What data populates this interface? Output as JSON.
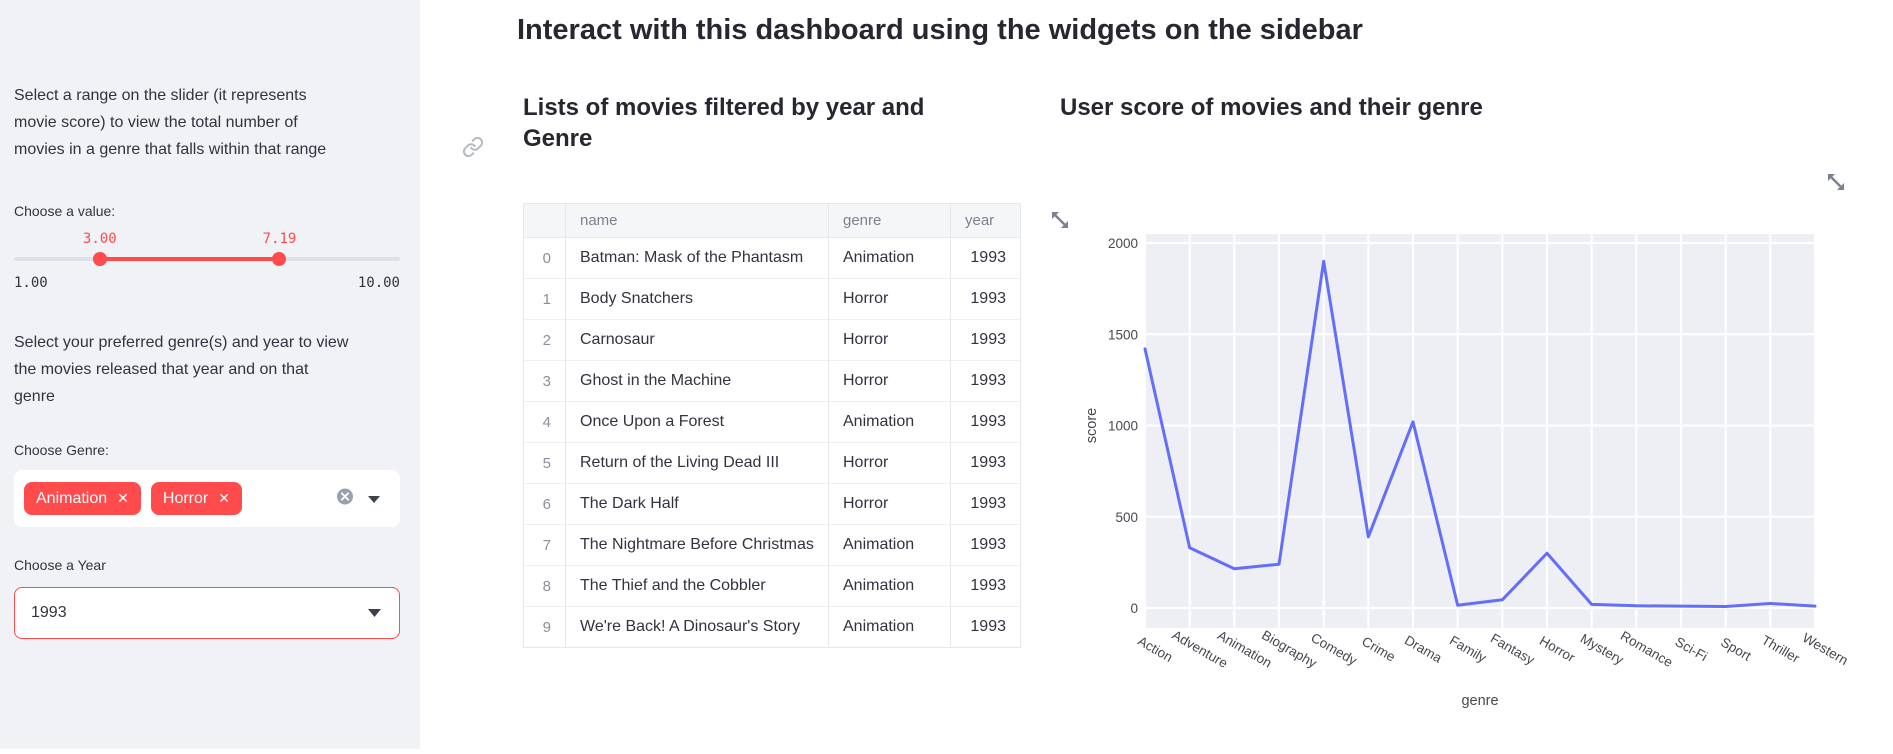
{
  "sidebar": {
    "instruction1": "Select a range on the slider (it represents movie score) to view the total number of movies in a genre that falls within that range",
    "slider": {
      "label": "Choose a value:",
      "min": 1.0,
      "max": 10.0,
      "low": 3.0,
      "high": 7.19,
      "low_label": "3.00",
      "high_label": "7.19",
      "min_label": "1.00",
      "max_label": "10.00"
    },
    "instruction2": "Select your preferred genre(s) and year to view the movies released that year and on that genre",
    "genre_select": {
      "label": "Choose Genre:",
      "selected": [
        "Animation",
        "Horror"
      ],
      "remove_glyph": "✕"
    },
    "year_select": {
      "label": "Choose a Year",
      "value": "1993"
    }
  },
  "main": {
    "title": "Interact with this dashboard using the widgets on the sidebar",
    "table_section": {
      "heading": "Lists of movies filtered by year and Genre",
      "columns": [
        "",
        "name",
        "genre",
        "year"
      ],
      "rows": [
        [
          0,
          "Batman: Mask of the Phantasm",
          "Animation",
          1993
        ],
        [
          1,
          "Body Snatchers",
          "Horror",
          1993
        ],
        [
          2,
          "Carnosaur",
          "Horror",
          1993
        ],
        [
          3,
          "Ghost in the Machine",
          "Horror",
          1993
        ],
        [
          4,
          "Once Upon a Forest",
          "Animation",
          1993
        ],
        [
          5,
          "Return of the Living Dead III",
          "Horror",
          1993
        ],
        [
          6,
          "The Dark Half",
          "Horror",
          1993
        ],
        [
          7,
          "The Nightmare Before Christmas",
          "Animation",
          1993
        ],
        [
          8,
          "The Thief and the Cobbler",
          "Animation",
          1993
        ],
        [
          9,
          "We're Back! A Dinosaur's Story",
          "Animation",
          1993
        ]
      ]
    },
    "chart_section": {
      "heading": "User score of movies and their genre"
    }
  },
  "chart_data": {
    "type": "line",
    "title": "User score of movies and their genre",
    "categories": [
      "Action",
      "Adventure",
      "Animation",
      "Biography",
      "Comedy",
      "Crime",
      "Drama",
      "Family",
      "Fantasy",
      "Horror",
      "Mystery",
      "Romance",
      "Sci-Fi",
      "Sport",
      "Thriller",
      "Western"
    ],
    "values": [
      1420,
      330,
      215,
      240,
      1900,
      390,
      1020,
      15,
      45,
      300,
      20,
      12,
      10,
      8,
      25,
      10
    ],
    "xlabel": "genre",
    "ylabel": "score",
    "ylim": [
      0,
      2000
    ],
    "yticks": [
      0,
      500,
      1000,
      1500,
      2000
    ],
    "grid": "on",
    "legend": "none",
    "line_color": "#636efa",
    "plot_bg": "#edeff4"
  },
  "colors": {
    "accent": "#ff4b4b",
    "sidebar_bg": "#f0f2f6",
    "text": "#31333f",
    "heading": "#262730",
    "muted": "#7d818e"
  }
}
